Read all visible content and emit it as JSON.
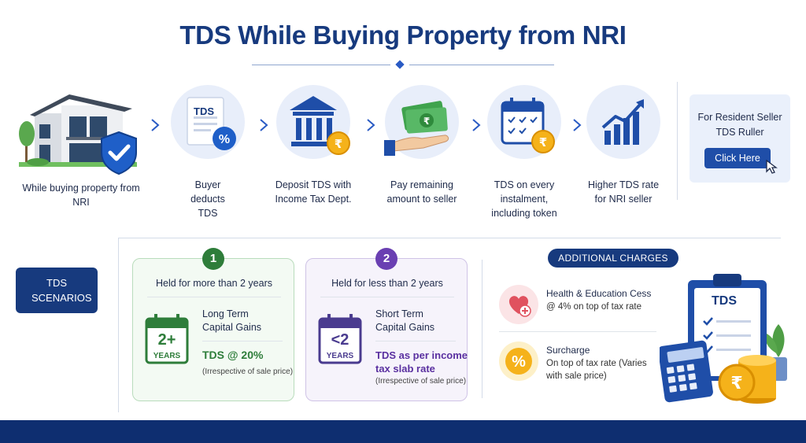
{
  "title": "TDS While Buying Property from NRI",
  "colors": {
    "navy": "#173a7e",
    "blue": "#1f4ea8",
    "green": "#2e7d3a",
    "purple": "#6a3fb2",
    "gold": "#f5b21a",
    "light_blue": "#e8eefa"
  },
  "flow": {
    "house_caption": "While buying property from NRI",
    "steps": [
      {
        "icon": "tds-document-icon",
        "doc_label": "TDS",
        "caption": "Buyer deducts TDS"
      },
      {
        "icon": "bank-building-icon",
        "caption": "Deposit TDS with Income Tax Dept."
      },
      {
        "icon": "money-hand-icon",
        "caption": "Pay remaining amount to seller"
      },
      {
        "icon": "calendar-rupee-icon",
        "caption": "TDS on every instalment, including token"
      },
      {
        "icon": "rising-chart-icon",
        "caption": "Higher TDS rate for NRI seller"
      }
    ]
  },
  "resident": {
    "text": "For Resident Seller TDS Ruller",
    "button_label": "Click Here"
  },
  "scenarios": {
    "badge": "TDS SCENARIOS",
    "cards": [
      {
        "number": "1",
        "held": "Held for more than 2 years",
        "cal_top": "2+",
        "cal_bottom": "YEARS",
        "gain": "Long Term Capital Gains",
        "rate": "TDS @ 20%",
        "note": "(Irrespective of sale price)"
      },
      {
        "number": "2",
        "held": "Held for less than 2 years",
        "cal_top": "<2",
        "cal_bottom": "YEARS",
        "gain": "Short Term Capital Gains",
        "rate": "TDS as per income tax slab rate",
        "note": "(Irrespective of sale price)"
      }
    ]
  },
  "additional": {
    "badge": "ADDITIONAL CHARGES",
    "items": [
      {
        "icon": "heart-plus-icon",
        "title": "Health & Education Cess",
        "sub": "@ 4% on top of tax rate"
      },
      {
        "icon": "percent-icon",
        "title": "Surcharge",
        "sub": "On top of tax rate (Varies with sale price)"
      }
    ],
    "clipboard_label": "TDS"
  }
}
